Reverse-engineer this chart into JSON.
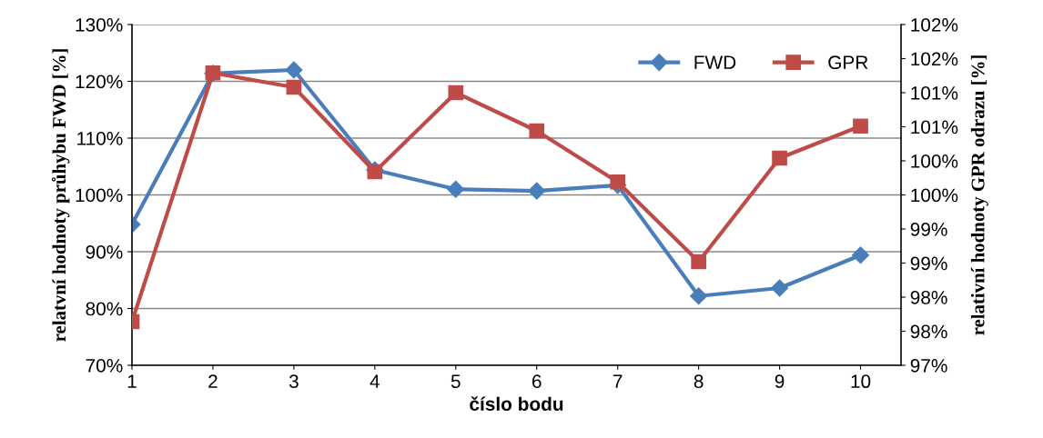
{
  "chart_data": {
    "type": "line",
    "xlabel": "číslo bodu",
    "ylabel": "relatvní hodnoty průhybu FWD [%]",
    "y2label": "relativní hodnoty GPR odrazu [%]",
    "categories": [
      "1",
      "2",
      "3",
      "4",
      "5",
      "6",
      "7",
      "8",
      "9",
      "10"
    ],
    "series": [
      {
        "name": "FWD",
        "color": "#4a7ebb",
        "marker": "diamond",
        "values": [
          94.8,
          121.4,
          122.0,
          104.4,
          101.0,
          100.7,
          101.7,
          82.2,
          83.6,
          89.4
        ]
      },
      {
        "name": "GPR",
        "color": "#be4b48",
        "marker": "square",
        "axis": "y2",
        "values": [
          97.64,
          101.29,
          101.08,
          99.84,
          101.0,
          100.44,
          99.69,
          98.52,
          100.04,
          100.51
        ]
      }
    ],
    "ylim": [
      70,
      130
    ],
    "yticks": [
      {
        "value": 70,
        "label": "70%"
      },
      {
        "value": 80,
        "label": "80%"
      },
      {
        "value": 90,
        "label": "90%"
      },
      {
        "value": 100,
        "label": "100%"
      },
      {
        "value": 110,
        "label": "110%"
      },
      {
        "value": 120,
        "label": "120%"
      },
      {
        "value": 130,
        "label": "130%"
      }
    ],
    "y2lim": [
      97,
      102
    ],
    "y2ticks": [
      {
        "value": 97,
        "label": "97%"
      },
      {
        "value": 97.5,
        "label": "98%"
      },
      {
        "value": 98,
        "label": "98%"
      },
      {
        "value": 98.5,
        "label": "99%"
      },
      {
        "value": 99,
        "label": "99%"
      },
      {
        "value": 99.5,
        "label": "100%"
      },
      {
        "value": 100,
        "label": "100%"
      },
      {
        "value": 100.5,
        "label": "101%"
      },
      {
        "value": 101,
        "label": "101%"
      },
      {
        "value": 101.5,
        "label": "102%"
      },
      {
        "value": 102,
        "label": "102%"
      }
    ],
    "grid": "y",
    "legend": "top right",
    "line_style": "solid"
  }
}
